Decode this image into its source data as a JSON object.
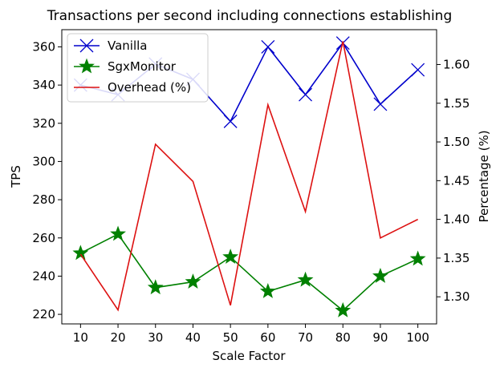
{
  "chart_data": {
    "type": "line",
    "title": "Transactions per second including connections establishing",
    "xlabel": "Scale Factor",
    "ylabel": "TPS",
    "y2label": "Percentage (%)",
    "x": [
      10,
      20,
      30,
      40,
      50,
      60,
      70,
      80,
      90,
      100
    ],
    "xlim": [
      5,
      105
    ],
    "ylim": [
      215,
      369
    ],
    "y2lim": [
      1.265,
      1.645
    ],
    "yticks": [
      220,
      240,
      260,
      280,
      300,
      320,
      340,
      360
    ],
    "y2ticks": [
      "1.30",
      "1.35",
      "1.40",
      "1.45",
      "1.50",
      "1.55",
      "1.60"
    ],
    "grid": false,
    "legend_position": "top-left",
    "series": [
      {
        "name": "Vanilla",
        "axis": "left",
        "color": "#0000cc",
        "marker": "x",
        "values": [
          340,
          335,
          351,
          343,
          321,
          360,
          335,
          362,
          330,
          348
        ]
      },
      {
        "name": "SgxMonitor",
        "axis": "left",
        "color": "#008000",
        "marker": "star",
        "values": [
          252,
          262,
          234,
          237,
          250,
          232,
          238,
          222,
          240,
          249
        ]
      },
      {
        "name": "Overhead (%)",
        "axis": "right",
        "color": "#dd1111",
        "marker": "none",
        "values": [
          1.355,
          1.283,
          1.497,
          1.449,
          1.289,
          1.548,
          1.41,
          1.63,
          1.376,
          1.4
        ]
      }
    ]
  }
}
